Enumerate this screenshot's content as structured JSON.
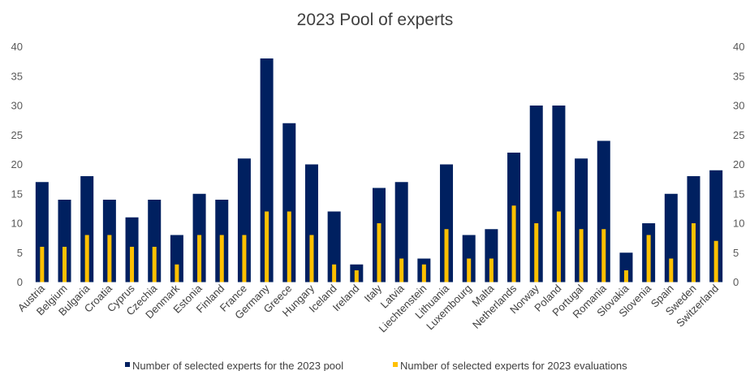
{
  "chart_data": {
    "type": "bar",
    "title": "2023 Pool of experts",
    "xlabel": "",
    "ylabel": "",
    "ylim": [
      0,
      40
    ],
    "yticks": [
      0,
      5,
      10,
      15,
      20,
      25,
      30,
      35,
      40
    ],
    "grid": false,
    "legend_position": "bottom",
    "categories": [
      "Austria",
      "Belgium",
      "Bulgaria",
      "Croatia",
      "Cyprus",
      "Czechia",
      "Denmark",
      "Estonia",
      "Finland",
      "France",
      "Germany",
      "Greece",
      "Hungary",
      "Iceland",
      "Ireland",
      "Italy",
      "Latvia",
      "Liechtenstein",
      "Lithuania",
      "Luxembourg",
      "Malta",
      "Netherlands",
      "Norway",
      "Poland",
      "Portugal",
      "Romania",
      "Slovakia",
      "Slovenia",
      "Spain",
      "Sweden",
      "Switzerland"
    ],
    "series": [
      {
        "name": "Number of selected experts for the 2023 pool",
        "color": "#002060",
        "values": [
          17,
          14,
          18,
          14,
          11,
          14,
          8,
          15,
          14,
          21,
          38,
          27,
          20,
          12,
          3,
          16,
          17,
          4,
          20,
          8,
          9,
          22,
          30,
          30,
          21,
          24,
          5,
          10,
          15,
          18,
          19
        ]
      },
      {
        "name": "Number of selected experts for 2023 evaluations",
        "color": "#FFC000",
        "values": [
          6,
          6,
          8,
          8,
          6,
          6,
          3,
          8,
          8,
          8,
          12,
          12,
          8,
          3,
          2,
          10,
          4,
          3,
          9,
          4,
          4,
          13,
          10,
          12,
          9,
          9,
          2,
          8,
          4,
          10,
          7
        ]
      }
    ]
  }
}
